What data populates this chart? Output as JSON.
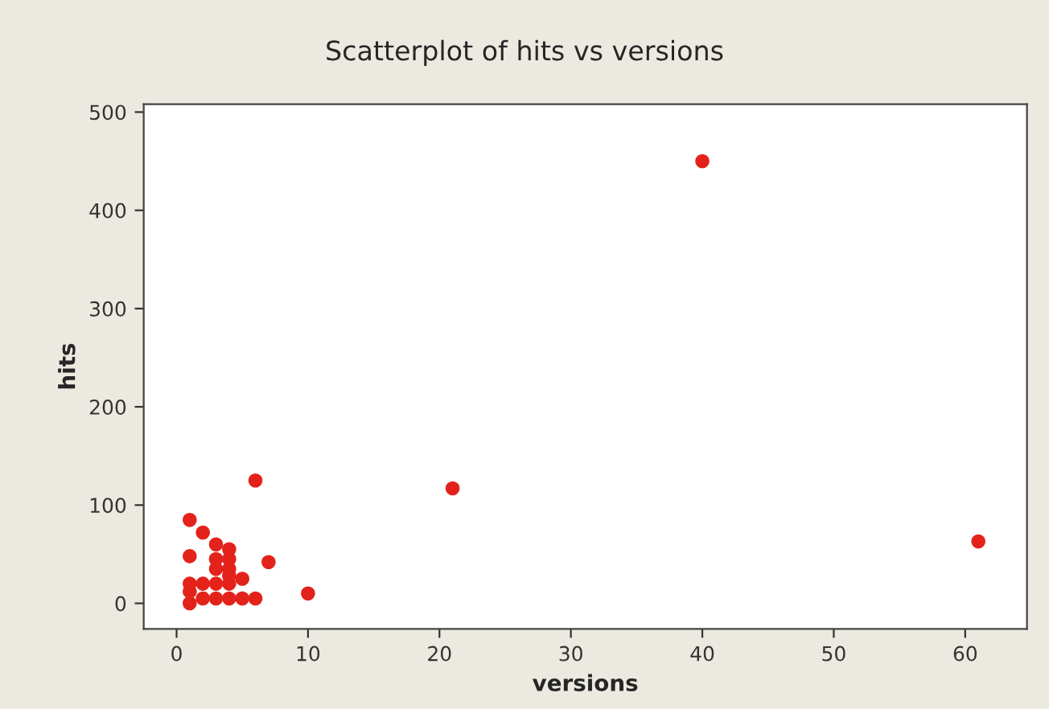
{
  "chart_data": {
    "type": "scatter",
    "title": "Scatterplot of hits vs versions",
    "xlabel": "versions",
    "ylabel": "hits",
    "x": [
      1,
      2,
      3,
      4,
      1,
      3,
      4,
      3,
      4,
      4,
      5,
      7,
      6,
      21,
      40,
      61,
      10,
      1,
      2,
      3,
      4,
      1,
      2,
      3,
      4,
      5,
      6,
      1
    ],
    "series": [
      {
        "color": "#e3231b",
        "values": [
          85,
          72,
          60,
          55,
          48,
          45,
          45,
          35,
          35,
          28,
          25,
          42,
          125,
          117,
          450,
          63,
          10,
          20,
          20,
          20,
          20,
          12,
          5,
          5,
          5,
          5,
          5,
          0
        ]
      }
    ],
    "xlim": [
      -2.5,
      64.7
    ],
    "ylim": [
      -26,
      508
    ],
    "xticks": [
      0,
      10,
      20,
      30,
      40,
      50,
      60
    ],
    "yticks": [
      0,
      100,
      200,
      300,
      400,
      500
    ],
    "marker": "circle",
    "grid": false,
    "legend": false
  }
}
